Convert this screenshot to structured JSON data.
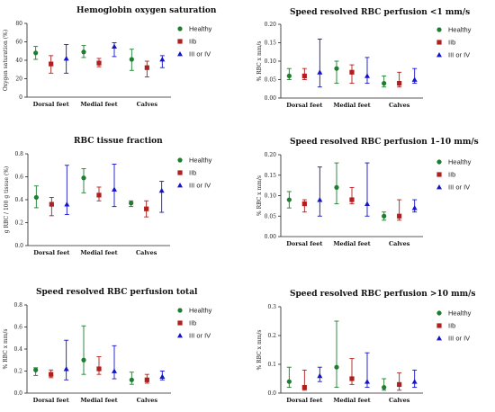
{
  "colors": {
    "Healthy": "#1e7d2e",
    "IIb": "#b01e1e",
    "III or IV": "#1414c8"
  },
  "chart_data": [
    {
      "type": "scatter",
      "title": "Hemoglobin oxygen saturation",
      "ylabel": "Oxygen saturation (%)",
      "ylim": [
        0,
        80
      ],
      "yticks": [
        "0",
        "20",
        "40",
        "60",
        "80"
      ],
      "categories": [
        "Dorsal feet",
        "Medial feet",
        "Calves"
      ],
      "series": [
        {
          "name": "Healthy",
          "values": [
            48,
            49,
            41
          ],
          "err_low": [
            41,
            43,
            29
          ],
          "err_high": [
            55,
            56,
            52
          ]
        },
        {
          "name": "IIb",
          "values": [
            36,
            37,
            32
          ],
          "err_low": [
            26,
            33,
            22
          ],
          "err_high": [
            45,
            42,
            39
          ]
        },
        {
          "name": "III or IV",
          "values": [
            42,
            55,
            41
          ],
          "err_low": [
            26,
            44,
            32
          ],
          "err_high": [
            57,
            59,
            45
          ]
        }
      ]
    },
    {
      "type": "scatter",
      "title": "Speed resolved RBC perfusion <1 mm/s",
      "ylabel": "% RBC x mm/s",
      "ylim": [
        0,
        0.2
      ],
      "yticks": [
        "0.00",
        "0.05",
        "0.10",
        "0.15",
        "0.20"
      ],
      "categories": [
        "Dorsal feet",
        "Medial feet",
        "Calves"
      ],
      "series": [
        {
          "name": "Healthy",
          "values": [
            0.06,
            0.08,
            0.04
          ],
          "err_low": [
            0.05,
            0.04,
            0.03
          ],
          "err_high": [
            0.08,
            0.1,
            0.06
          ]
        },
        {
          "name": "IIb",
          "values": [
            0.06,
            0.07,
            0.04
          ],
          "err_low": [
            0.05,
            0.04,
            0.03
          ],
          "err_high": [
            0.08,
            0.09,
            0.07
          ]
        },
        {
          "name": "III or IV",
          "values": [
            0.07,
            0.06,
            0.05
          ],
          "err_low": [
            0.03,
            0.04,
            0.04
          ],
          "err_high": [
            0.16,
            0.11,
            0.08
          ]
        }
      ]
    },
    {
      "type": "scatter",
      "title": "RBC tissue fraction",
      "ylabel": "g RBC / 100 g tissue (%)",
      "ylim": [
        0,
        0.8
      ],
      "yticks": [
        "0.0",
        "0.2",
        "0.4",
        "0.6",
        "0.8"
      ],
      "categories": [
        "Dorsal feet",
        "Medial feet",
        "Calves"
      ],
      "series": [
        {
          "name": "Healthy",
          "values": [
            0.42,
            0.59,
            0.37
          ],
          "err_low": [
            0.33,
            0.46,
            0.34
          ],
          "err_high": [
            0.52,
            0.67,
            0.39
          ]
        },
        {
          "name": "IIb",
          "values": [
            0.36,
            0.44,
            0.32
          ],
          "err_low": [
            0.26,
            0.39,
            0.25
          ],
          "err_high": [
            0.42,
            0.51,
            0.39
          ]
        },
        {
          "name": "III or IV",
          "values": [
            0.36,
            0.49,
            0.48
          ],
          "err_low": [
            0.27,
            0.34,
            0.29
          ],
          "err_high": [
            0.7,
            0.71,
            0.56
          ]
        }
      ]
    },
    {
      "type": "scatter",
      "title": "Speed resolved RBC perfusion 1–10 mm/s",
      "ylabel": "% RBC x mm/s",
      "ylim": [
        0,
        0.2
      ],
      "yticks": [
        "0.00",
        "0.05",
        "0.10",
        "0.15",
        "0.20"
      ],
      "categories": [
        "Dorsal feet",
        "Medial feet",
        "Calves"
      ],
      "series": [
        {
          "name": "Healthy",
          "values": [
            0.09,
            0.12,
            0.05
          ],
          "err_low": [
            0.07,
            0.08,
            0.04
          ],
          "err_high": [
            0.11,
            0.18,
            0.06
          ]
        },
        {
          "name": "IIb",
          "values": [
            0.08,
            0.09,
            0.05
          ],
          "err_low": [
            0.06,
            0.08,
            0.04
          ],
          "err_high": [
            0.09,
            0.12,
            0.09
          ]
        },
        {
          "name": "III or IV",
          "values": [
            0.09,
            0.08,
            0.07
          ],
          "err_low": [
            0.05,
            0.05,
            0.06
          ],
          "err_high": [
            0.17,
            0.18,
            0.09
          ]
        }
      ]
    },
    {
      "type": "scatter",
      "title": "Speed resolved RBC perfusion total",
      "ylabel": "% RBC x mm/s",
      "ylim": [
        0,
        0.8
      ],
      "yticks": [
        "0.0",
        "0.2",
        "0.4",
        "0.6",
        "0.8"
      ],
      "categories": [
        "Dorsal feet",
        "Medial feet",
        "Calves"
      ],
      "series": [
        {
          "name": "Healthy",
          "values": [
            0.21,
            0.3,
            0.12
          ],
          "err_low": [
            0.16,
            0.17,
            0.08
          ],
          "err_high": [
            0.23,
            0.61,
            0.19
          ]
        },
        {
          "name": "IIb",
          "values": [
            0.17,
            0.22,
            0.12
          ],
          "err_low": [
            0.14,
            0.17,
            0.09
          ],
          "err_high": [
            0.21,
            0.33,
            0.17
          ]
        },
        {
          "name": "III or IV",
          "values": [
            0.22,
            0.2,
            0.15
          ],
          "err_low": [
            0.12,
            0.13,
            0.12
          ],
          "err_high": [
            0.48,
            0.43,
            0.2
          ]
        }
      ]
    },
    {
      "type": "scatter",
      "title": "Speed resolved RBC perfusion >10 mm/s",
      "ylabel": "% RBC x mm/s",
      "ylim": [
        0,
        0.3
      ],
      "yticks": [
        "0.0",
        "0.1",
        "0.2",
        "0.3"
      ],
      "categories": [
        "Dorsal feet",
        "Medial feet",
        "Calves"
      ],
      "series": [
        {
          "name": "Healthy",
          "values": [
            0.04,
            0.09,
            0.02
          ],
          "err_low": [
            0.02,
            0.02,
            0.01
          ],
          "err_high": [
            0.09,
            0.25,
            0.05
          ]
        },
        {
          "name": "IIb",
          "values": [
            0.02,
            0.05,
            0.03
          ],
          "err_low": [
            0.01,
            0.03,
            0.01
          ],
          "err_high": [
            0.08,
            0.12,
            0.07
          ]
        },
        {
          "name": "III or IV",
          "values": [
            0.06,
            0.04,
            0.04
          ],
          "err_low": [
            0.04,
            0.02,
            0.02
          ],
          "err_high": [
            0.09,
            0.14,
            0.08
          ]
        }
      ]
    }
  ]
}
